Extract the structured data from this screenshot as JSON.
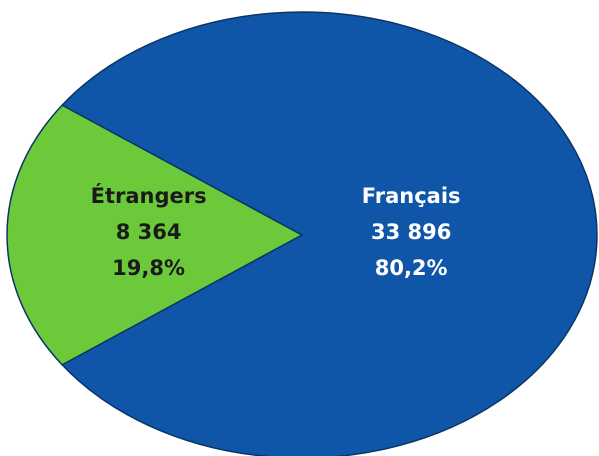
{
  "chart_data": {
    "type": "pie",
    "categories": [
      "Étrangers",
      "Français"
    ],
    "values": [
      8364,
      33896
    ],
    "value_labels": [
      "8 364",
      "33 896"
    ],
    "percents": [
      19.8,
      80.2
    ],
    "percent_labels": [
      "19,8%",
      "80,2%"
    ],
    "colors": [
      "#6cca3a",
      "#0f56a9"
    ],
    "label_colors": [
      "#1a1a1a",
      "#ffffff"
    ]
  }
}
